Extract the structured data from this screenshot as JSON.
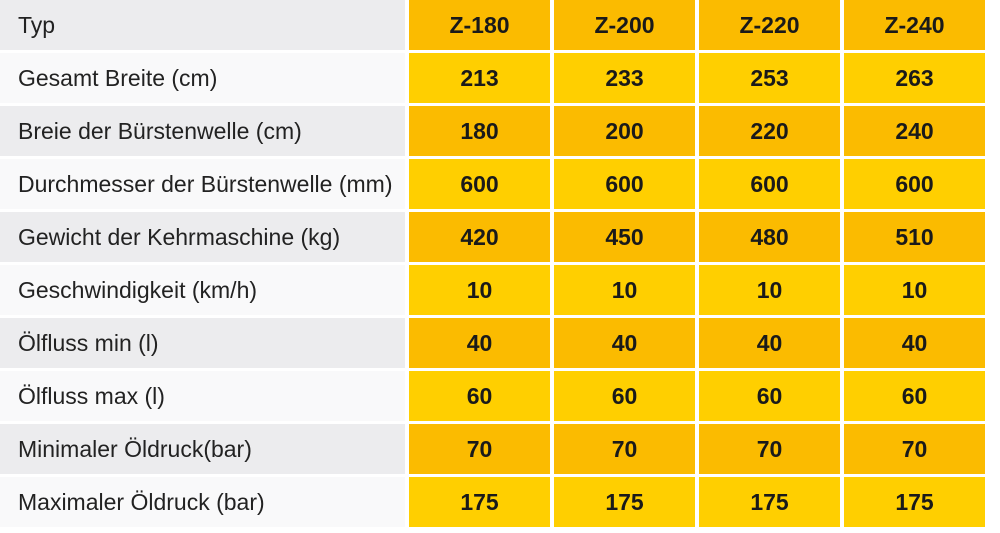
{
  "table": {
    "header": {
      "label": "Typ",
      "models": [
        "Z-180",
        "Z-200",
        "Z-220",
        "Z-240"
      ]
    },
    "rows": [
      {
        "label": "Gesamt Breite (cm)",
        "values": [
          "213",
          "233",
          "253",
          "263"
        ]
      },
      {
        "label": "Breie der Bürstenwelle (cm)",
        "values": [
          "180",
          "200",
          "220",
          "240"
        ]
      },
      {
        "label": "Durchmesser der Bürstenwelle (mm)",
        "values": [
          "600",
          "600",
          "600",
          "600"
        ]
      },
      {
        "label": "Gewicht der Kehrmaschine (kg)",
        "values": [
          "420",
          "450",
          "480",
          "510"
        ]
      },
      {
        "label": "Geschwindigkeit (km/h)",
        "values": [
          "10",
          "10",
          "10",
          "10"
        ]
      },
      {
        "label": "Ölfluss min (l)",
        "values": [
          "40",
          "40",
          "40",
          "40"
        ]
      },
      {
        "label": "Ölfluss max (l)",
        "values": [
          "60",
          "60",
          "60",
          "60"
        ]
      },
      {
        "label": "Minimaler Öldruck(bar)",
        "values": [
          "70",
          "70",
          "70",
          "70"
        ]
      },
      {
        "label": "Maximaler Öldruck (bar)",
        "values": [
          "175",
          "175",
          "175",
          "175"
        ]
      }
    ]
  },
  "colors": {
    "label_dark": "#ececee",
    "label_light": "#f9f9fa",
    "cell_dark": "#fbbb00",
    "cell_light": "#ffcf00"
  }
}
